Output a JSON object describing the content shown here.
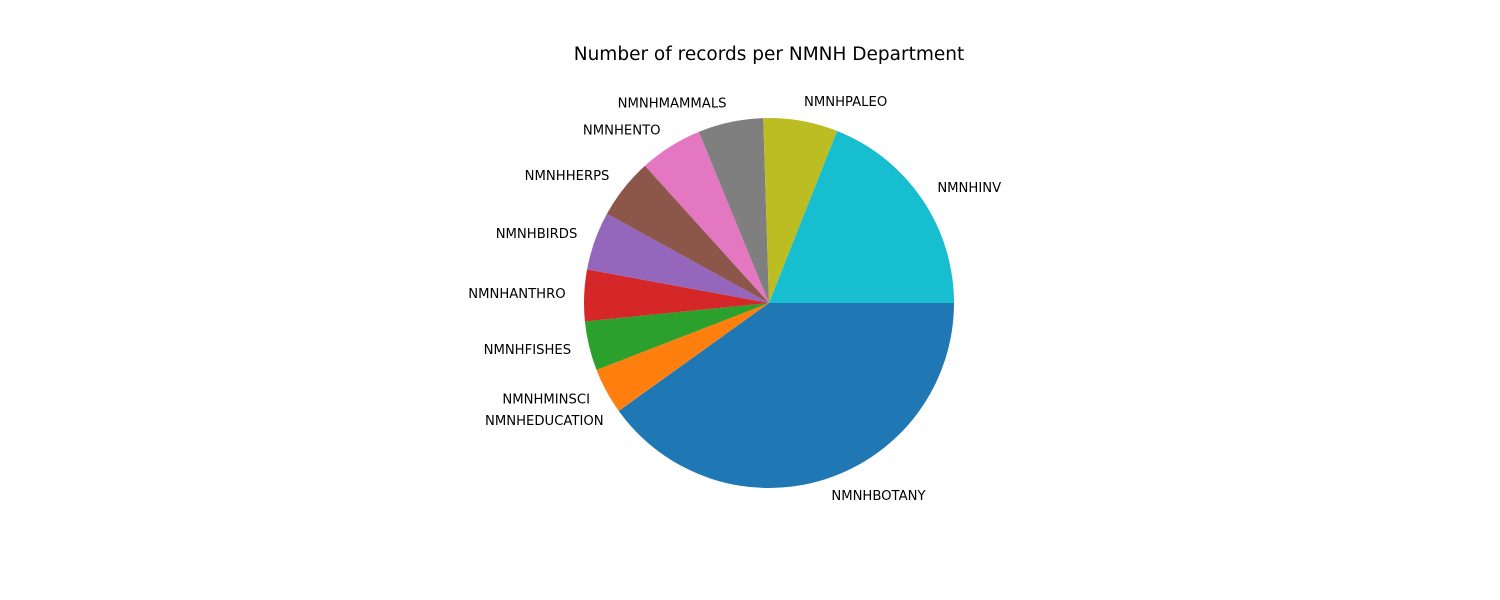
{
  "chart_data": {
    "type": "pie",
    "title": "Number of records per NMNH Department",
    "categories": [
      "NMNHBOTANY",
      "NMNHEDUCATION",
      "NMNHMINSCI",
      "NMNHFISHES",
      "NMNHANTHRO",
      "NMNHBIRDS",
      "NMNHHERPS",
      "NMNHENTO",
      "NMNHMAMMALS",
      "NMNHPALEO",
      "NMNHINV"
    ],
    "values": [
      40.1,
      0.02,
      4.0,
      4.3,
      4.5,
      5.1,
      5.3,
      5.5,
      5.7,
      6.5,
      19.0
    ],
    "colors": [
      "#1f77b4",
      "#ff7f0e",
      "#ff7f0e",
      "#2ca02c",
      "#d62728",
      "#9467bd",
      "#8c564b",
      "#e377c2",
      "#7f7f7f",
      "#bcbd22",
      "#17becf"
    ],
    "start": "3 o'clock",
    "direction": "clockwise",
    "legend": "none"
  }
}
